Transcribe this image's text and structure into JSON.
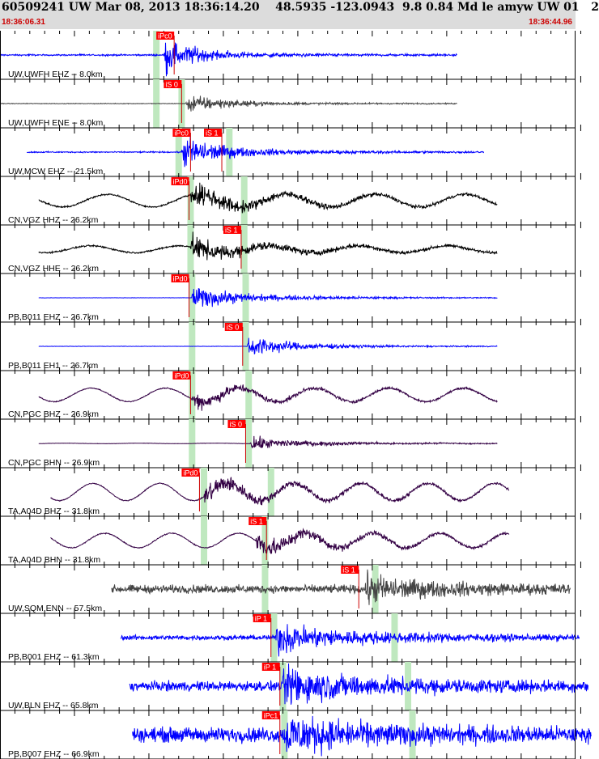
{
  "header": {
    "title": "60509241 UW Mar 08, 2013 18:36:14.20    48.5935 -123.0943  9.8 0.84 Md le amyw UW 01   2",
    "time_start": "18:36:06.31",
    "time_end": "18:36:44.96"
  },
  "colors": {
    "header_bg": "#dcdcdc",
    "blue_trace": "#0000ff",
    "black_trace": "#000000",
    "gray_trace": "#444444",
    "purple_trace": "#330044",
    "pick_box": "#ff0000",
    "pick_band": "#bfe8bf",
    "time_text": "#cc0000"
  },
  "chart_data": {
    "type": "line",
    "xlabel": "",
    "ylabel": "",
    "time_range": [
      "18:36:06.31",
      "18:36:44.96"
    ],
    "traces": [
      {
        "label": "UW,UWFH EHZ -- 8.0km",
        "color": "#0000ff",
        "t_start": 0.0,
        "t_end": 30.7,
        "p_time": 11.0,
        "noise": 0.05,
        "sig": 0.9,
        "coda": 0.12,
        "swell": 0,
        "swell_period": 0,
        "picks": [
          {
            "label": "iPc0",
            "t": 10.5
          }
        ],
        "bands": [
          10.5
        ]
      },
      {
        "label": "UW,UWFH ENE -- 8.0km",
        "color": "#444444",
        "t_start": 0.0,
        "t_end": 30.7,
        "p_time": 12.5,
        "noise": 0.02,
        "sig": 0.5,
        "coda": 0.12,
        "swell": 0,
        "swell_period": 0,
        "picks": [
          {
            "label": "iS 0",
            "t": 11.0
          }
        ],
        "bands": [
          10.5,
          12.2
        ]
      },
      {
        "label": "UW,MCW EHZ -- 21.5km",
        "color": "#0000ff",
        "t_start": 1.8,
        "t_end": 32.5,
        "p_time": 12.2,
        "noise": 0.04,
        "sig": 0.85,
        "coda": 0.2,
        "swell": 0,
        "swell_period": 0,
        "picks": [
          {
            "label": "iPc0",
            "t": 11.6
          },
          {
            "label": "iS 1",
            "t": 13.7
          }
        ],
        "bands": [
          12.0,
          15.4
        ]
      },
      {
        "label": "CN,VGZ HHZ -- 26.2km",
        "color": "#000000",
        "t_start": 2.6,
        "t_end": 33.4,
        "p_time": 12.8,
        "noise": 0.05,
        "sig": 0.5,
        "coda": 0.3,
        "swell": 0.28,
        "swell_period": 6.0,
        "picks": [
          {
            "label": "iPd0",
            "t": 11.5
          }
        ],
        "bands": [
          12.8,
          16.4
        ]
      },
      {
        "label": "CN,VGZ HHE -- 26.2km",
        "color": "#000000",
        "t_start": 2.6,
        "t_end": 33.4,
        "p_time": 12.8,
        "noise": 0.05,
        "sig": 0.45,
        "coda": 0.3,
        "swell": 0.15,
        "swell_period": 6.0,
        "picks": [
          {
            "label": "iS 1",
            "t": 15.0
          }
        ],
        "bands": [
          12.8,
          16.4
        ]
      },
      {
        "label": "PB,B011 EHZ -- 26.7km",
        "color": "#0000ff",
        "t_start": 2.6,
        "t_end": 33.4,
        "p_time": 12.9,
        "noise": 0.01,
        "sig": 0.5,
        "coda": 0.25,
        "swell": 0,
        "swell_period": 0,
        "picks": [
          {
            "label": "iPd0",
            "t": 11.5
          }
        ],
        "bands": [
          12.9,
          16.5
        ]
      },
      {
        "label": "PB,B011 EH1 -- 26.7km",
        "color": "#0000ff",
        "t_start": 2.6,
        "t_end": 33.4,
        "p_time": 16.6,
        "noise": 0.01,
        "sig": 0.6,
        "coda": 0.15,
        "swell": 0,
        "swell_period": 0,
        "picks": [
          {
            "label": "iS 0",
            "t": 15.1
          }
        ],
        "bands": [
          12.9,
          16.5
        ]
      },
      {
        "label": "CN,PGC BHZ -- 26.9km",
        "color": "#330044",
        "t_start": 2.6,
        "t_end": 33.4,
        "p_time": 12.9,
        "noise": 0.03,
        "sig": 0.35,
        "coda": 0.2,
        "swell": 0.3,
        "swell_period": 5.0,
        "picks": [
          {
            "label": "iPd0",
            "t": 11.6
          }
        ],
        "bands": [
          12.9,
          16.7
        ]
      },
      {
        "label": "CN,PGC BHN -- 26.9km",
        "color": "#330044",
        "t_start": 2.6,
        "t_end": 33.4,
        "p_time": 16.8,
        "noise": 0.01,
        "sig": 0.3,
        "coda": 0.15,
        "swell": 0.01,
        "swell_period": 5.0,
        "picks": [
          {
            "label": "iS 0",
            "t": 15.3
          }
        ],
        "bands": [
          12.9,
          16.7
        ]
      },
      {
        "label": "TA,A04D BHZ -- 31.8km",
        "color": "#330044",
        "t_start": 3.4,
        "t_end": 34.2,
        "p_time": 13.7,
        "noise": 0.03,
        "sig": 0.4,
        "coda": 0.3,
        "swell": 0.38,
        "swell_period": 4.5,
        "picks": [
          {
            "label": "iPd0",
            "t": 12.2
          }
        ],
        "bands": [
          13.7,
          18.2
        ]
      },
      {
        "label": "TA,A04D BHN -- 31.8km",
        "color": "#330044",
        "t_start": 3.4,
        "t_end": 34.2,
        "p_time": 17.2,
        "noise": 0.03,
        "sig": 0.45,
        "coda": 0.3,
        "swell": 0.32,
        "swell_period": 4.5,
        "picks": [
          {
            "label": "iS 1",
            "t": 16.7
          }
        ],
        "bands": [
          13.7,
          17.8
        ]
      },
      {
        "label": "UW,SQM ENN -- 57.5km",
        "color": "#444444",
        "t_start": 7.5,
        "t_end": 38.3,
        "p_time": 24.5,
        "noise": 0.25,
        "sig": 0.45,
        "coda": 0.35,
        "swell": 0,
        "swell_period": 0,
        "picks": [
          {
            "label": "iS 1",
            "t": 22.9
          }
        ],
        "bands": [
          17.8,
          25.2
        ]
      },
      {
        "label": "PB,B001 EHZ -- 61.3km",
        "color": "#0000ff",
        "t_start": 8.1,
        "t_end": 38.9,
        "p_time": 18.5,
        "noise": 0.15,
        "sig": 0.5,
        "coda": 0.45,
        "swell": 0,
        "swell_period": 0,
        "picks": [
          {
            "label": "iP 1",
            "t": 17.0
          }
        ],
        "bands": [
          18.4,
          26.5
        ]
      },
      {
        "label": "UW,BLN EHZ -- 65.8km",
        "color": "#0000ff",
        "t_start": 8.7,
        "t_end": 39.5,
        "p_time": 19.0,
        "noise": 0.3,
        "sig": 0.6,
        "coda": 0.55,
        "swell": 0,
        "swell_period": 0,
        "picks": [
          {
            "label": "iP 1",
            "t": 17.6
          }
        ],
        "bands": [
          19.0,
          27.4
        ]
      },
      {
        "label": "PB,B007 EHZ -- 66.9km",
        "color": "#0000ff",
        "t_start": 8.9,
        "t_end": 39.7,
        "p_time": 19.1,
        "noise": 0.45,
        "sig": 0.55,
        "coda": 0.5,
        "swell": 0,
        "swell_period": 0,
        "picks": [
          {
            "label": "iPc1",
            "t": 17.6
          }
        ],
        "bands": [
          19.1,
          27.7
        ]
      }
    ]
  }
}
